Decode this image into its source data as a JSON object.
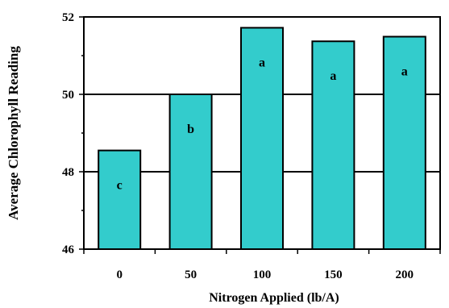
{
  "chart_data": {
    "type": "bar",
    "title": "",
    "xlabel": "Nitrogen Applied (lb/A)",
    "ylabel": "Average Chlorophyll Reading",
    "categories": [
      "0",
      "50",
      "100",
      "150",
      "200"
    ],
    "values": [
      48.55,
      50.0,
      51.72,
      51.37,
      51.49
    ],
    "data_labels": [
      "c",
      "b",
      "a",
      "a",
      "a"
    ],
    "ylim": [
      46,
      52
    ],
    "yticks": [
      "46",
      "48",
      "50",
      "52"
    ],
    "grid": true,
    "bar_color": "#33CCCC",
    "bar_edge_color": "#000000"
  }
}
